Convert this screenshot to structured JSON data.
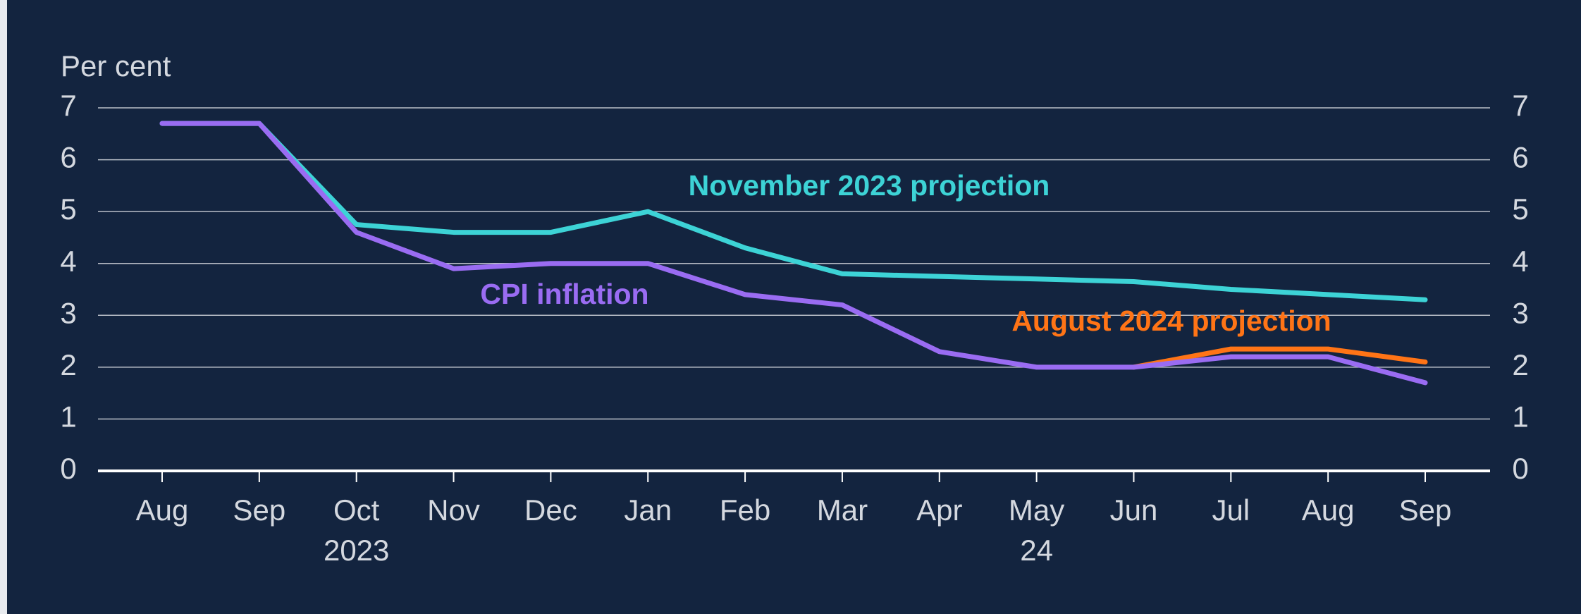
{
  "chart_data": {
    "type": "line",
    "y_axis_label": "Per cent",
    "categories": [
      "Aug",
      "Sep",
      "Oct",
      "Nov",
      "Dec",
      "Jan",
      "Feb",
      "Mar",
      "Apr",
      "May",
      "Jun",
      "Jul",
      "Aug",
      "Sep"
    ],
    "x_sublabels": [
      null,
      null,
      "2023",
      null,
      null,
      null,
      null,
      null,
      null,
      "24",
      null,
      null,
      null,
      null
    ],
    "series": [
      {
        "name": "November 2023 projection",
        "color": "#3dd3d6",
        "values": [
          6.7,
          6.7,
          4.75,
          4.6,
          4.6,
          5.0,
          4.3,
          3.8,
          3.75,
          3.7,
          3.65,
          3.5,
          3.4,
          3.3
        ]
      },
      {
        "name": "August 2024 projection",
        "color": "#ff7416",
        "values": [
          null,
          null,
          null,
          null,
          null,
          null,
          null,
          null,
          null,
          null,
          2.0,
          2.35,
          2.35,
          2.1
        ]
      },
      {
        "name": "CPI inflation",
        "color": "#9a6cf2",
        "values": [
          6.7,
          6.7,
          4.6,
          3.9,
          4.0,
          4.0,
          3.4,
          3.2,
          2.3,
          2.0,
          2.0,
          2.2,
          2.2,
          1.7
        ]
      }
    ],
    "ylim": [
      0,
      7
    ],
    "yticks": [
      0,
      1,
      2,
      3,
      4,
      5,
      6,
      7
    ],
    "y_axis_right": true,
    "grid": true
  }
}
